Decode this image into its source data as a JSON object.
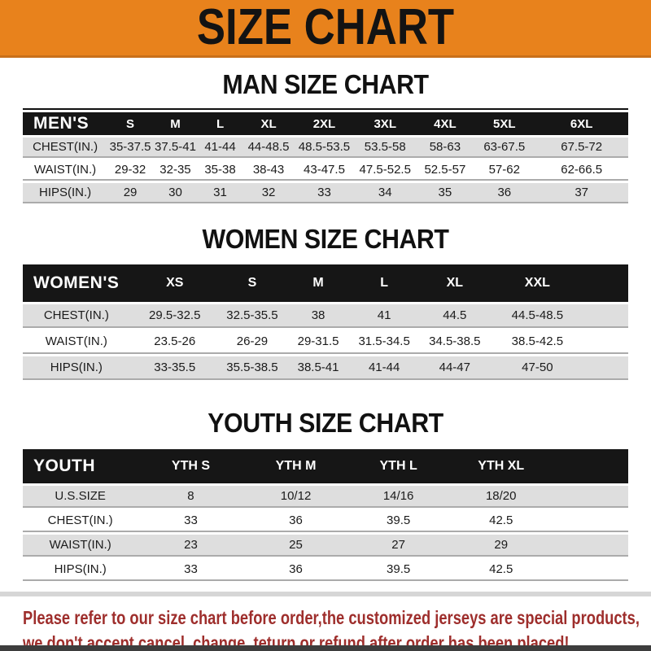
{
  "banner": {
    "title": "SIZE CHART"
  },
  "colors": {
    "banner_bg": "#E8821C",
    "header_bar_bg": "#161616",
    "row_gray": "#DEDEDE",
    "footer_text": "#9E2E2C",
    "bottom_strip": "#3D3D3D"
  },
  "sections": [
    {
      "heading": "MAN SIZE CHART",
      "header_label": "MEN'S",
      "columns": [
        "S",
        "M",
        "L",
        "XL",
        "2XL",
        "3XL",
        "4XL",
        "5XL",
        "6XL"
      ],
      "rows": [
        {
          "label": "CHEST(IN.)",
          "values": [
            "35-37.5",
            "37.5-41",
            "41-44",
            "44-48.5",
            "48.5-53.5",
            "53.5-58",
            "58-63",
            "63-67.5",
            "67.5-72"
          ]
        },
        {
          "label": "WAIST(IN.)",
          "values": [
            "29-32",
            "32-35",
            "35-38",
            "38-43",
            "43-47.5",
            "47.5-52.5",
            "52.5-57",
            "57-62",
            "62-66.5"
          ]
        },
        {
          "label": "HIPS(IN.)",
          "values": [
            "29",
            "30",
            "31",
            "32",
            "33",
            "34",
            "35",
            "36",
            "37"
          ]
        }
      ]
    },
    {
      "heading": "WOMEN SIZE CHART",
      "header_label": "WOMEN'S",
      "columns": [
        "XS",
        "S",
        "M",
        "L",
        "XL",
        "XXL"
      ],
      "rows": [
        {
          "label": "CHEST(IN.)",
          "values": [
            "29.5-32.5",
            "32.5-35.5",
            "38",
            "41",
            "44.5",
            "44.5-48.5"
          ]
        },
        {
          "label": "WAIST(IN.)",
          "values": [
            "23.5-26",
            "26-29",
            "29-31.5",
            "31.5-34.5",
            "34.5-38.5",
            "38.5-42.5"
          ]
        },
        {
          "label": "HIPS(IN.)",
          "values": [
            "33-35.5",
            "35.5-38.5",
            "38.5-41",
            "41-44",
            "44-47",
            "47-50"
          ]
        }
      ]
    },
    {
      "heading": "YOUTH SIZE CHART",
      "header_label": "YOUTH",
      "columns": [
        "YTH S",
        "YTH M",
        "YTH L",
        "YTH XL"
      ],
      "rows": [
        {
          "label": "U.S.SIZE",
          "values": [
            "8",
            "10/12",
            "14/16",
            "18/20"
          ]
        },
        {
          "label": "CHEST(IN.)",
          "values": [
            "33",
            "36",
            "39.5",
            "42.5"
          ]
        },
        {
          "label": "WAIST(IN.)",
          "values": [
            "23",
            "25",
            "27",
            "29"
          ]
        },
        {
          "label": "HIPS(IN.)",
          "values": [
            "33",
            "36",
            "39.5",
            "42.5"
          ]
        }
      ]
    }
  ],
  "footer": {
    "line1": "Please refer to our size chart before order,the customized jerseys are special products,",
    "line2": "we don't accept cancel, change, teturn or refund after order has been placed!"
  }
}
